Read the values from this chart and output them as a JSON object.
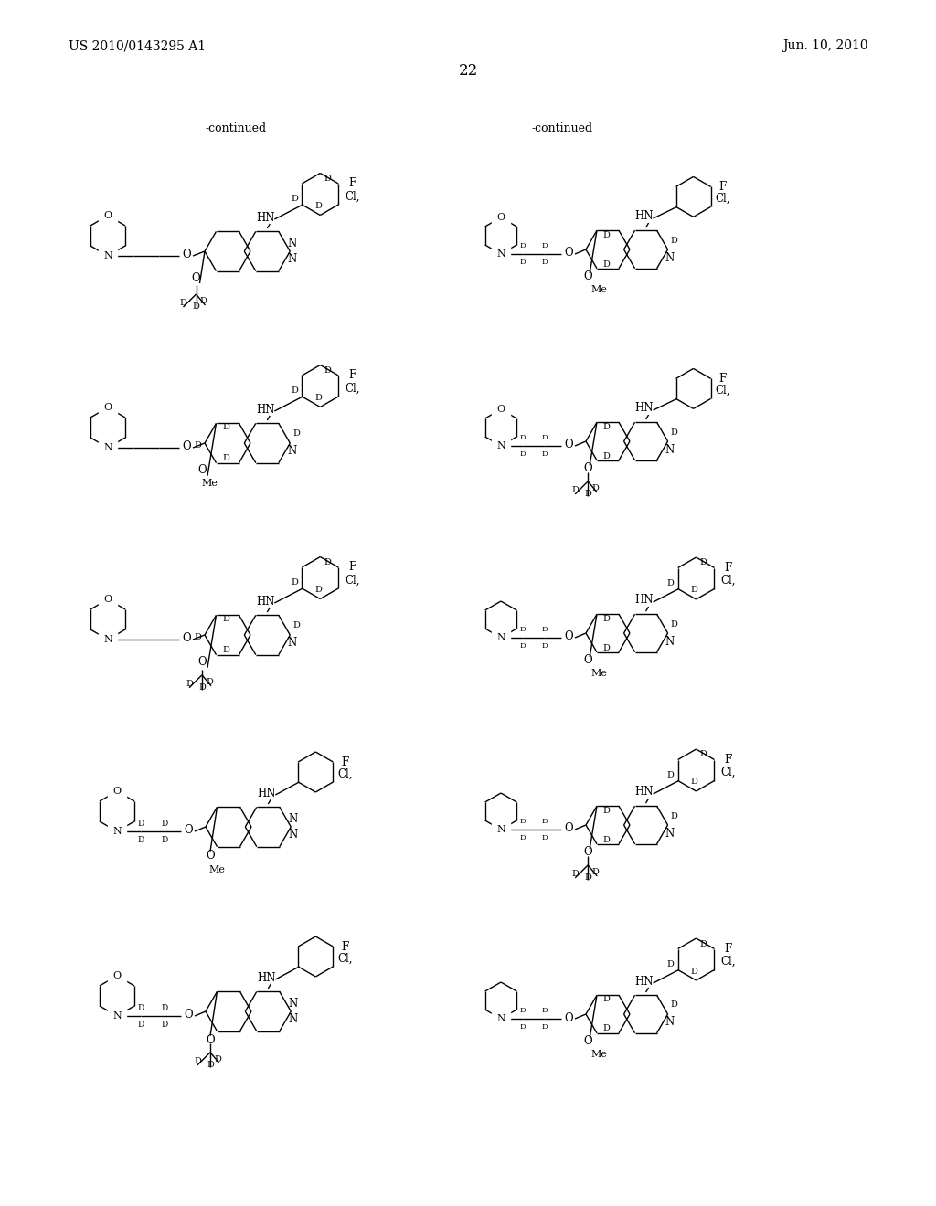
{
  "patent_number": "US 2010/0143295 A1",
  "patent_date": "Jun. 10, 2010",
  "page_number": "22",
  "continued": "-continued",
  "bg_color": "#ffffff",
  "text_color": "#000000"
}
